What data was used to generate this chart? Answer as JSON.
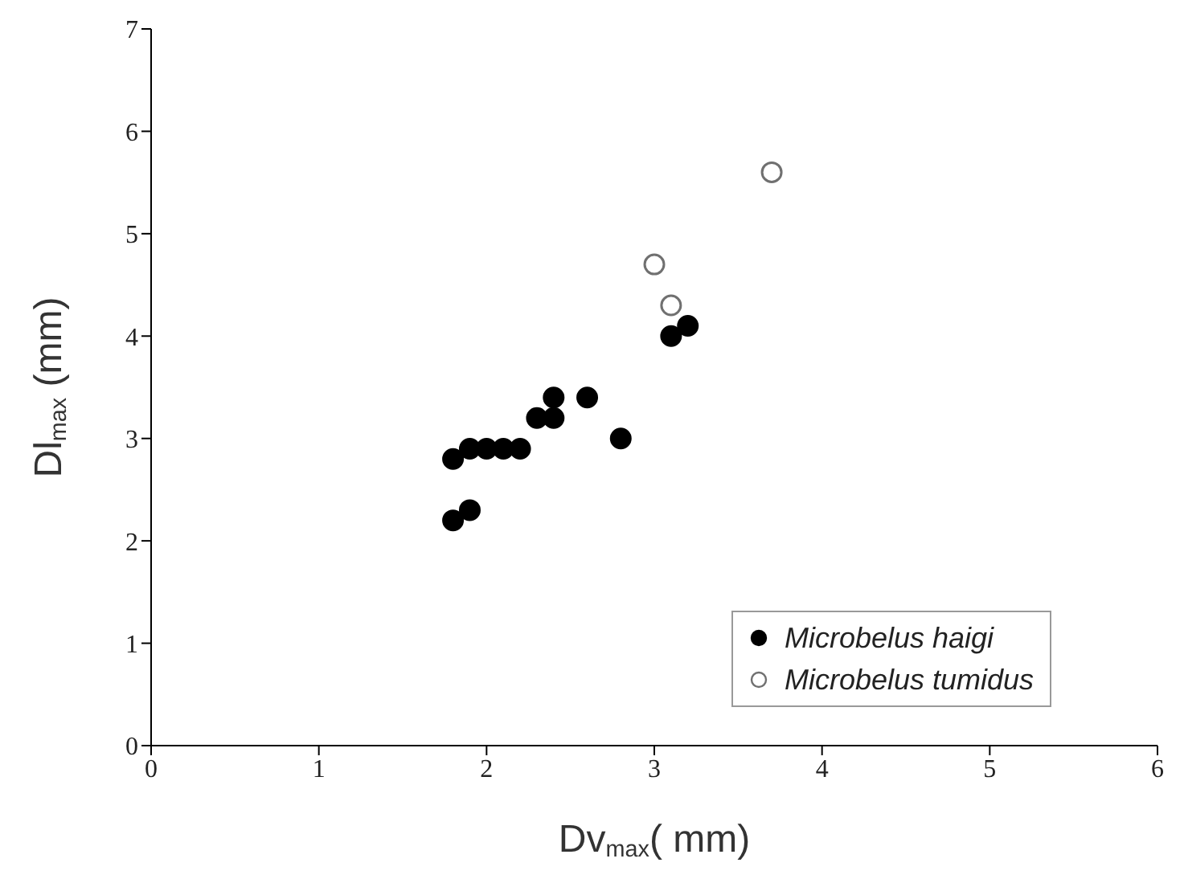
{
  "chart_data": {
    "type": "scatter",
    "xlabel": "Dv$_{max}$( mm)",
    "ylabel": "Dl$_{max}$ (mm)",
    "xlim": [
      0,
      6
    ],
    "xticks": [
      0,
      1,
      2,
      3,
      4,
      5,
      6
    ],
    "ylim": [
      0,
      7
    ],
    "yticks": [
      0,
      1,
      2,
      3,
      4,
      5,
      6,
      7
    ],
    "grid": false,
    "legend": "bottom right",
    "marker": "circle",
    "series": [
      {
        "name": "Microbelus haigi",
        "color": "#000000",
        "x": [
          1.8,
          1.9,
          2.0,
          2.1,
          2.2,
          1.8,
          1.9,
          2.3,
          2.4,
          2.4,
          2.6,
          2.8,
          3.1,
          3.2
        ],
        "values": [
          2.8,
          2.9,
          2.9,
          2.9,
          2.9,
          2.2,
          2.3,
          3.2,
          3.2,
          3.4,
          3.4,
          3.0,
          4.0,
          4.1
        ]
      },
      {
        "name": "Microbelus tumidus",
        "color": "#707070",
        "x": [
          3.0,
          3.1,
          3.7
        ],
        "values": [
          4.7,
          4.3,
          5.6
        ]
      }
    ]
  }
}
